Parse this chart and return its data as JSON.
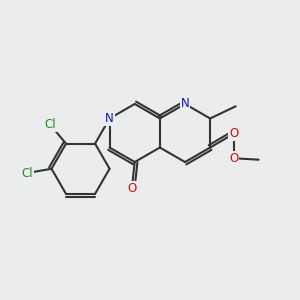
{
  "bg": "#eaecee",
  "bc": "#333333",
  "N_color": "#1010cc",
  "O_color": "#cc1010",
  "Cl_color": "#228B22",
  "lw": 1.5,
  "doff": 0.028,
  "fs": 8.5,
  "figsize": [
    3.0,
    3.0
  ],
  "dpi": 100,
  "xlim": [
    -1.55,
    1.55
  ],
  "ylim": [
    -1.55,
    1.55
  ]
}
